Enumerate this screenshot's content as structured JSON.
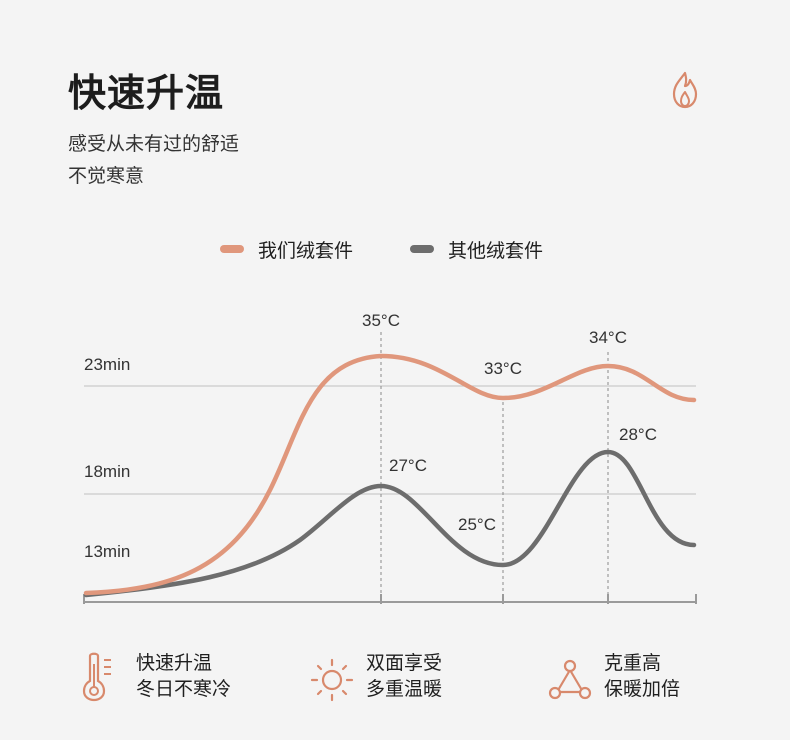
{
  "header": {
    "title": "快速升温",
    "subtitle_lines": [
      "感受从未有过的舒适",
      "不觉寒意"
    ],
    "icon": "flame-icon"
  },
  "colors": {
    "ours": "#e0977c",
    "theirs": "#6d6d6d",
    "accent": "#d8896c",
    "grid": "#c9c9c9",
    "axis": "#9a9a9a",
    "background": "#f4f4f4"
  },
  "legend": {
    "ours": "我们绒套件",
    "theirs": "其他绒套件"
  },
  "chart_data": {
    "type": "line",
    "title": "",
    "xlabel": "",
    "ylabel": "",
    "y_tick_labels": [
      "23min",
      "18min",
      "13min"
    ],
    "series": [
      {
        "name": "我们绒套件",
        "points": [
          {
            "label": "35°C"
          },
          {
            "label": "33°C"
          },
          {
            "label": "34°C"
          }
        ]
      },
      {
        "name": "其他绒套件",
        "points": [
          {
            "label": "27°C"
          },
          {
            "label": "25°C"
          },
          {
            "label": "28°C"
          }
        ]
      }
    ],
    "grid": true,
    "legend": "top-center"
  },
  "features": [
    {
      "icon": "thermometer-icon",
      "line1": "快速升温",
      "line2": "冬日不寒冷"
    },
    {
      "icon": "sun-icon",
      "line1": "双面享受",
      "line2": "多重温暖"
    },
    {
      "icon": "triangle-network-icon",
      "line1": "克重高",
      "line2": "保暖加倍"
    }
  ]
}
